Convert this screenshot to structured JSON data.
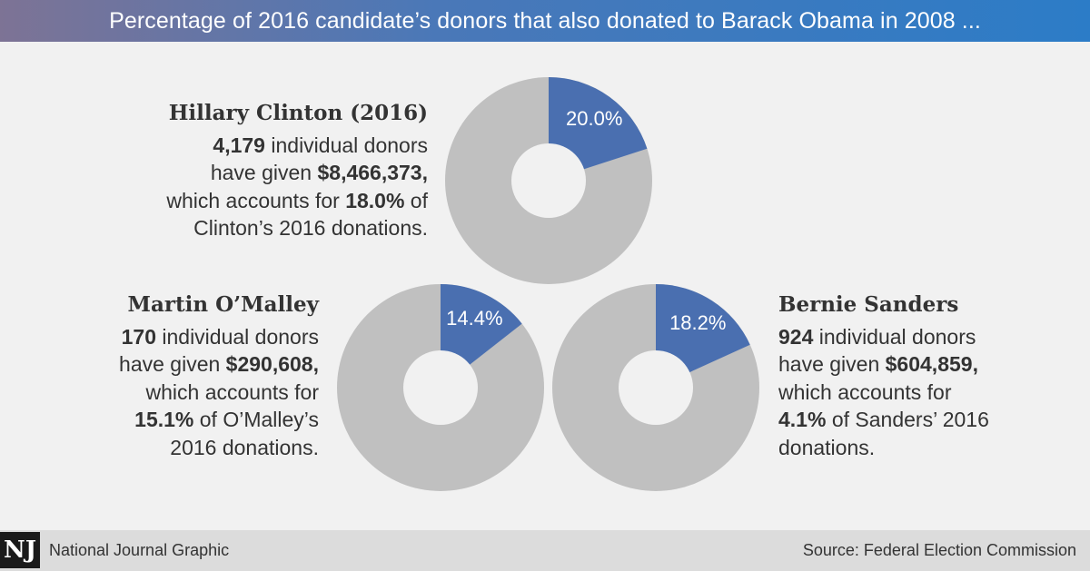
{
  "header": {
    "title": "Percentage of 2016 candidate’s donors that also donated to Barack Obama in 2008 ..."
  },
  "colors": {
    "slice": "#4a6fb0",
    "rest": "#c0c0c0",
    "hole": "#f1f1f1"
  },
  "chart_data": {
    "type": "pie",
    "title": "Percentage of 2016 candidate’s donors that also donated to Barack Obama in 2008 ...",
    "series": [
      {
        "name": "Hillary Clinton (2016)",
        "value": 20.0,
        "label": "20.0%"
      },
      {
        "name": "Martin O’Malley",
        "value": 14.4,
        "label": "14.4%"
      },
      {
        "name": "Bernie Sanders",
        "value": 18.2,
        "label": "18.2%"
      }
    ]
  },
  "blocks": {
    "clinton": {
      "name": "Hillary Clinton (2016)",
      "donors": "4,179",
      "t1": " individual donors",
      "t2": "have given ",
      "amount": "$8,466,373,",
      "t3": "which accounts for ",
      "share": "18.0%",
      "t4": " of",
      "t5": "Clinton’s 2016 donations."
    },
    "omalley": {
      "name": "Martin O’Malley",
      "donors": "170",
      "t1": " individual donors",
      "t2": "have given ",
      "amount": "$290,608,",
      "t3": "which accounts for",
      "share": "15.1%",
      "t4": " of O’Malley’s",
      "t5": "2016 donations."
    },
    "sanders": {
      "name": "Bernie Sanders",
      "donors": "924",
      "t1": " individual donors",
      "t2": "have given ",
      "amount": "$604,859,",
      "t3": "which accounts for",
      "share": "4.1%",
      "t4": " of Sanders’ 2016",
      "t5": "donations."
    }
  },
  "footer": {
    "logo": "NJ",
    "left": "National Journal Graphic",
    "right": "Source: Federal Election Commission"
  }
}
